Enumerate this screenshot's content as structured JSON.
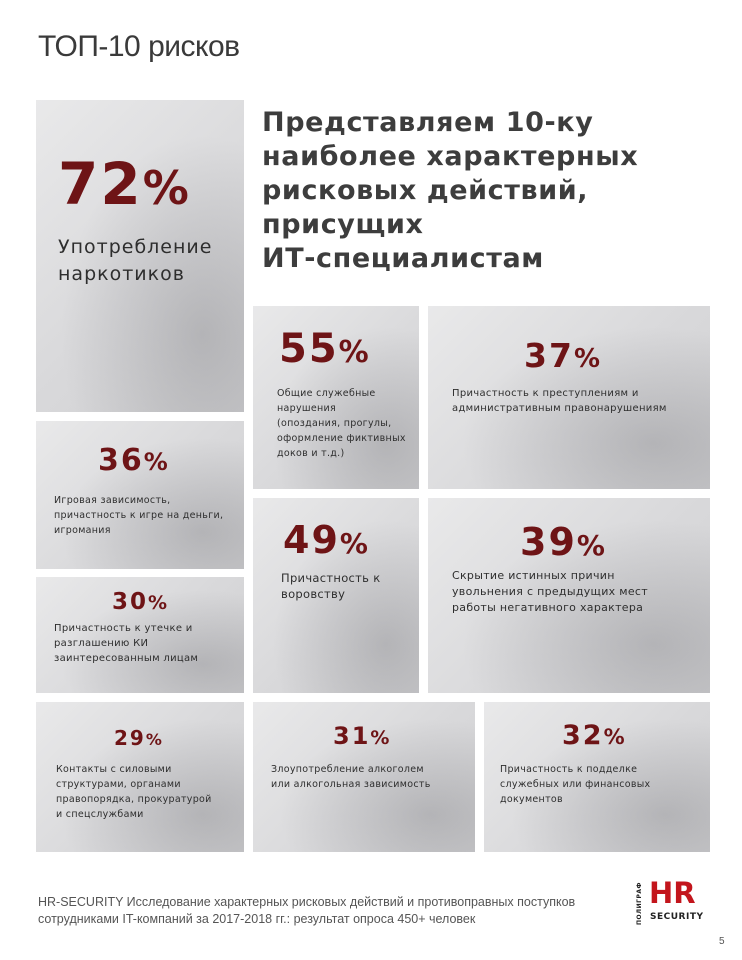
{
  "page_title": "ТОП-10 рисков",
  "headline": [
    "Представляем 10-ку",
    "наиболее характерных",
    "рисковых действий,",
    "присущих",
    "ИТ-специалистам"
  ],
  "risks": [
    {
      "id": "drugs",
      "value": "72",
      "sign": "%",
      "text": "Употребление\nнаркотиков"
    },
    {
      "id": "violations",
      "value": "55",
      "sign": "%",
      "text": "Общие служебные\nнарушения\n(опоздания, прогулы,\nоформление фиктивных\nдоков и т.д.)"
    },
    {
      "id": "crimes",
      "value": "37",
      "sign": "%",
      "text": "Причастность к преступлениям и\nадминистративным правонарушениям"
    },
    {
      "id": "gambling",
      "value": "36",
      "sign": "%",
      "text": "Игровая зависимость,\nпричастность к игре на деньги,\nигромания"
    },
    {
      "id": "theft",
      "value": "49",
      "sign": "%",
      "text": "Причастность к\nворовству"
    },
    {
      "id": "dismissal",
      "value": "39",
      "sign": "%",
      "text": "Скрытие истинных причин\nувольнения с предыдущих мест\nработы негативного характера"
    },
    {
      "id": "leak",
      "value": "30",
      "sign": "%",
      "text": "Причастность к утечке и\nразглашению КИ\nзаинтересованным лицам"
    },
    {
      "id": "security-contacts",
      "value": "29",
      "sign": "%",
      "text": "Контакты с силовыми\nструктурами, органами\nправопорядка, прокуратурой\nи спецслужбами"
    },
    {
      "id": "alcohol",
      "value": "31",
      "sign": "%",
      "text": "Злоупотребление алкоголем\nили алкогольная зависимость"
    },
    {
      "id": "forgery",
      "value": "32",
      "sign": "%",
      "text": "Причастность к подделке\nслужебных или финансовых\nдокументов"
    }
  ],
  "footer": "HR-SECURITY Исследование характерных рисковых действий и противоправных поступков\nсотрудниками IT-компаний за 2017-2018 гг.: результат опроса 450+ человек",
  "logo": {
    "vertical": "ПОЛИГРАФ",
    "main": "HR",
    "sub": "SECURITY"
  },
  "page_number": "5",
  "colors": {
    "accent": "#6e1416",
    "logo_red": "#c3151c",
    "tile_gray": "#dcdcde"
  }
}
